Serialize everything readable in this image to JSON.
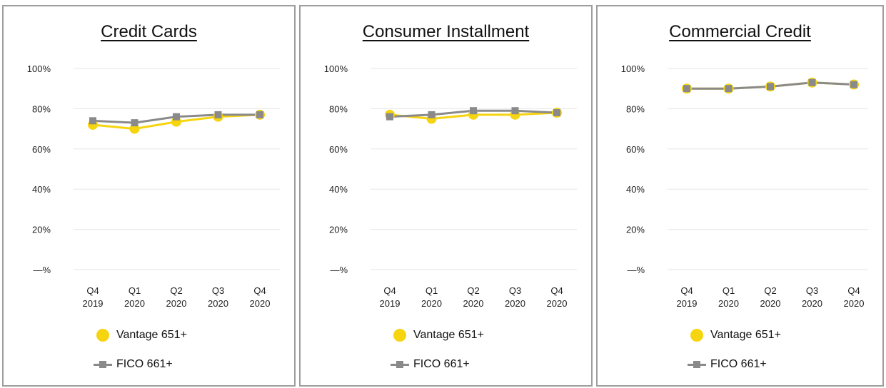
{
  "colors": {
    "vantage": "#f6d40f",
    "fico": "#8a8a8a",
    "grid": "#e6e6e6",
    "frame": "#9e9e9e"
  },
  "chart_data": [
    {
      "type": "line",
      "title": "Credit Cards",
      "categories": [
        [
          "Q4",
          "2019"
        ],
        [
          "Q1",
          "2020"
        ],
        [
          "Q2",
          "2020"
        ],
        [
          "Q3",
          "2020"
        ],
        [
          "Q4",
          "2020"
        ]
      ],
      "yticks": [
        "100%",
        "80%",
        "60%",
        "40%",
        "20%",
        "—%"
      ],
      "ylim": [
        0,
        100
      ],
      "series": [
        {
          "name": "Vantage 651+",
          "values": [
            72,
            70,
            73.5,
            76,
            77
          ]
        },
        {
          "name": "FICO 661+",
          "values": [
            74,
            73,
            76,
            77,
            77
          ]
        }
      ],
      "legend": [
        "Vantage 651+",
        "FICO 661+"
      ]
    },
    {
      "type": "line",
      "title": "Consumer Installment",
      "categories": [
        [
          "Q4",
          "2019"
        ],
        [
          "Q1",
          "2020"
        ],
        [
          "Q2",
          "2020"
        ],
        [
          "Q3",
          "2020"
        ],
        [
          "Q4",
          "2020"
        ]
      ],
      "yticks": [
        "100%",
        "80%",
        "60%",
        "40%",
        "20%",
        "—%"
      ],
      "ylim": [
        0,
        100
      ],
      "series": [
        {
          "name": "Vantage 651+",
          "values": [
            77,
            75,
            77,
            77,
            78
          ]
        },
        {
          "name": "FICO 661+",
          "values": [
            76,
            77,
            79,
            79,
            78
          ]
        }
      ],
      "legend": [
        "Vantage 651+",
        "FICO 661+"
      ]
    },
    {
      "type": "line",
      "title": "Commercial Credit",
      "categories": [
        [
          "Q4",
          "2019"
        ],
        [
          "Q1",
          "2020"
        ],
        [
          "Q2",
          "2020"
        ],
        [
          "Q3",
          "2020"
        ],
        [
          "Q4",
          "2020"
        ]
      ],
      "yticks": [
        "100%",
        "80%",
        "60%",
        "40%",
        "20%",
        "—%"
      ],
      "ylim": [
        0,
        100
      ],
      "series": [
        {
          "name": "Vantage 651+",
          "values": [
            90,
            90,
            91,
            93,
            92
          ]
        },
        {
          "name": "FICO 661+",
          "values": [
            90,
            90,
            91,
            93,
            92
          ]
        }
      ],
      "legend": [
        "Vantage 651+",
        "FICO 661+"
      ]
    }
  ]
}
